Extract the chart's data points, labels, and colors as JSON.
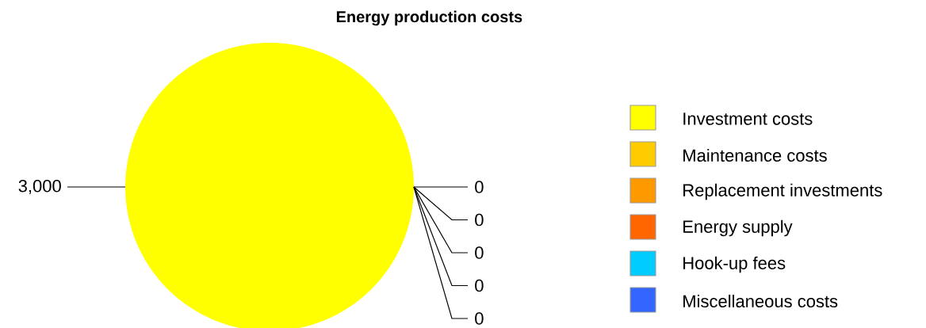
{
  "chart_data": {
    "type": "pie",
    "title": "Energy production costs",
    "categories": [
      "Investment costs",
      "Maintenance costs",
      "Replacement investments",
      "Energy supply",
      "Hook-up fees",
      "Miscellaneous costs"
    ],
    "values": [
      3000,
      0,
      0,
      0,
      0,
      0
    ],
    "value_labels": [
      "3,000",
      "0",
      "0",
      "0",
      "0",
      "0"
    ],
    "colors": [
      "#ffff00",
      "#ffcc00",
      "#ff9900",
      "#ff6600",
      "#00ccff",
      "#3366ff"
    ],
    "legend": "right"
  }
}
